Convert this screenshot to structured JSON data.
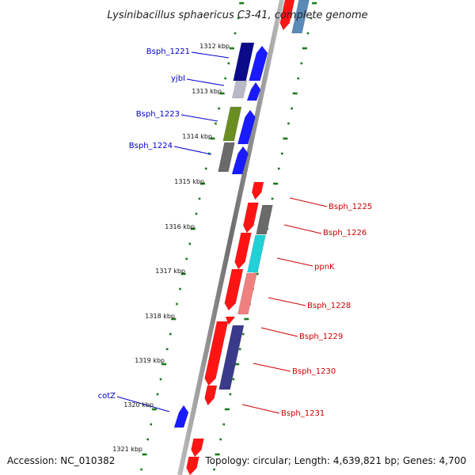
{
  "title": "Lysinibacillus sphaericus C3-41, complete genome",
  "footer": {
    "accession": "Accession: NC_010382",
    "topology": "Topology: circular; Length: 4,639,821 bp; Genes: 4,700"
  },
  "kbp_ticks": [
    "1312 kbp",
    "1313 kbp",
    "1314 kbp",
    "1315 kbp",
    "1316 kbp",
    "1317 kbp",
    "1318 kbp",
    "1319 kbp",
    "1320 kbp",
    "1321 kbp"
  ],
  "left_labels": [
    "Bsph_1221",
    "yjbI",
    "Bsph_1223",
    "Bsph_1224",
    "cotZ"
  ],
  "right_labels": [
    "Bsph_1225",
    "Bsph_1226",
    "ppnK",
    "Bsph_1228",
    "Bsph_1229",
    "Bsph_1230",
    "Bsph_1231"
  ],
  "colors": {
    "backbone": "#808080",
    "minus_strand_label": "#0000cc",
    "plus_strand_label": "#cc0000",
    "tick_dots": "#1a7a1a"
  }
}
